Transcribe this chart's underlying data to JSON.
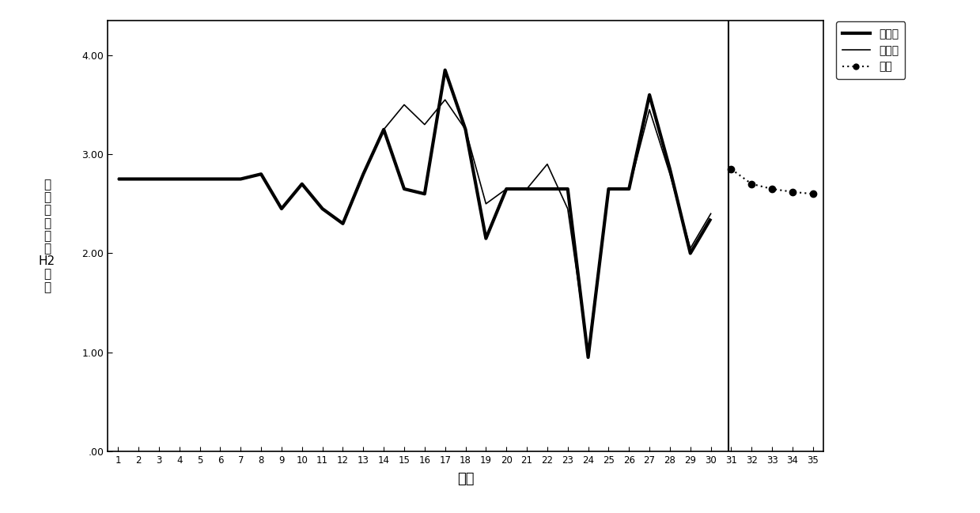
{
  "observed_x": [
    1,
    2,
    3,
    4,
    5,
    6,
    7,
    8,
    9,
    10,
    11,
    12,
    13,
    14,
    15,
    16,
    17,
    18,
    19,
    20,
    21,
    22,
    23,
    24,
    25,
    26,
    27,
    28,
    29,
    30
  ],
  "observed_y": [
    2.75,
    2.75,
    2.75,
    2.75,
    2.75,
    2.75,
    2.75,
    2.8,
    2.45,
    2.7,
    2.45,
    2.3,
    2.8,
    3.25,
    2.65,
    2.6,
    3.85,
    3.25,
    2.15,
    2.65,
    2.65,
    2.65,
    2.65,
    0.95,
    2.65,
    2.65,
    3.6,
    2.85,
    2.0,
    2.35
  ],
  "fitted_x": [
    1,
    2,
    3,
    4,
    5,
    6,
    7,
    8,
    9,
    10,
    11,
    12,
    13,
    14,
    15,
    16,
    17,
    18,
    19,
    20,
    21,
    22,
    23,
    24,
    25,
    26,
    27,
    28,
    29,
    30
  ],
  "fitted_y": [
    2.75,
    2.75,
    2.75,
    2.75,
    2.75,
    2.75,
    2.75,
    2.8,
    2.45,
    2.7,
    2.45,
    2.3,
    2.8,
    3.25,
    3.5,
    3.3,
    3.55,
    3.25,
    2.5,
    2.65,
    2.65,
    2.9,
    2.45,
    1.0,
    2.65,
    2.65,
    3.45,
    2.8,
    2.05,
    2.4
  ],
  "forecast_x": [
    31,
    32,
    33,
    34,
    35
  ],
  "forecast_y": [
    2.85,
    2.7,
    2.65,
    2.62,
    2.6
  ],
  "vline_x": 30.85,
  "xlim": [
    0.5,
    35.5
  ],
  "ylim": [
    0.0,
    4.35
  ],
  "yticks": [
    0.0,
    1.0,
    2.0,
    3.0,
    4.0
  ],
  "ytick_labels": [
    ".00",
    "1.00",
    "2.00",
    "3.00",
    "4.00"
  ],
  "xticks": [
    1,
    2,
    3,
    4,
    5,
    6,
    7,
    8,
    9,
    10,
    11,
    12,
    13,
    14,
    15,
    16,
    17,
    18,
    19,
    20,
    21,
    22,
    23,
    24,
    25,
    26,
    27,
    28,
    29,
    30,
    31,
    32,
    33,
    34,
    35
  ],
  "xlabel": "日期",
  "ylabel_chars": [
    "油",
    "中",
    "溶",
    "解",
    "气",
    "体",
    "H2",
    "含",
    "量"
  ],
  "legend_labels": [
    "观测值",
    "拟合值",
    "预测"
  ],
  "background_color": "#ffffff",
  "observed_color": "#000000",
  "fitted_color": "#000000",
  "forecast_color": "#000000",
  "observed_linewidth": 3.0,
  "fitted_linewidth": 1.2,
  "forecast_linewidth": 1.5,
  "dot_size": 6
}
